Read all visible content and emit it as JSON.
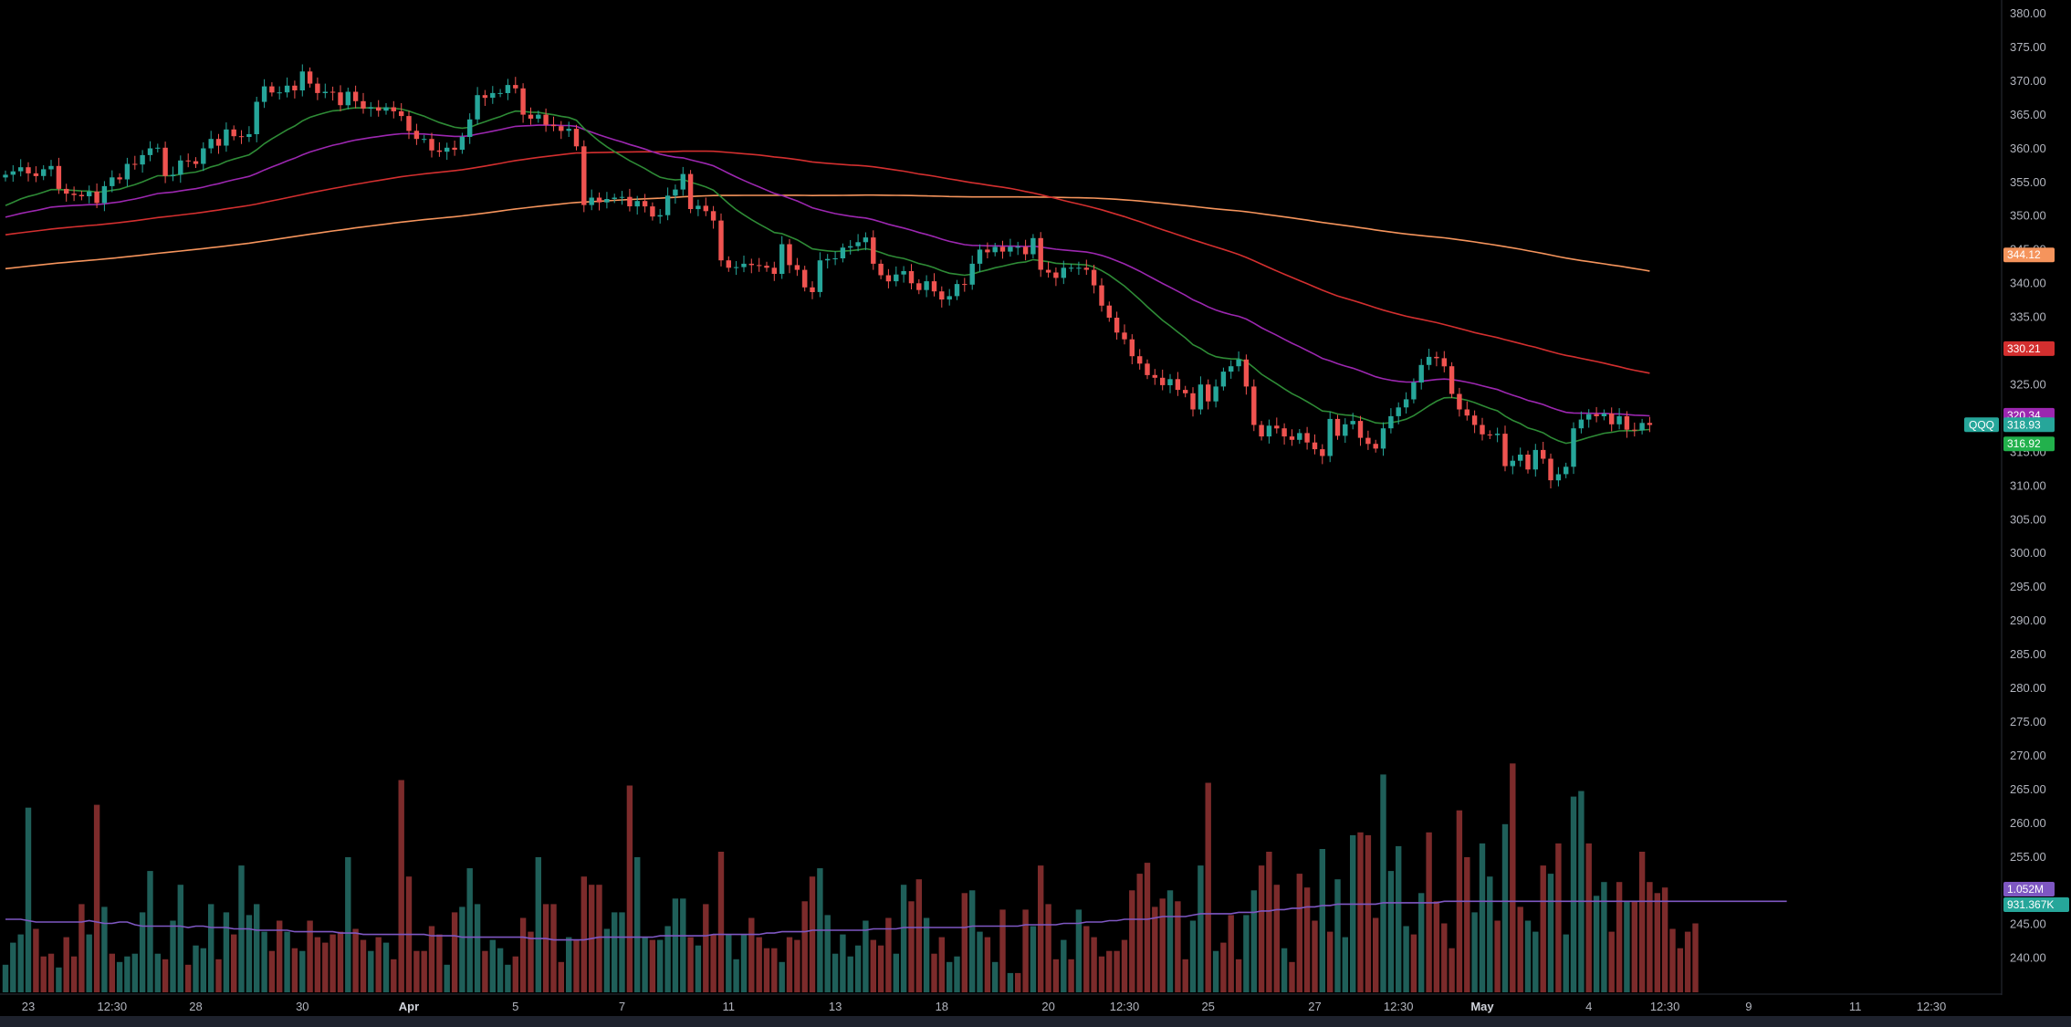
{
  "chart_data": {
    "type": "candlestick",
    "symbol": "QQQ",
    "y_ticks": [
      "380.00",
      "375.00",
      "370.00",
      "365.00",
      "360.00",
      "355.00",
      "350.00",
      "345.00",
      "340.00",
      "335.00",
      "330.00",
      "325.00",
      "320.00",
      "315.00",
      "310.00",
      "305.00",
      "300.00",
      "295.00",
      "290.00",
      "285.00",
      "280.00",
      "275.00",
      "270.00",
      "265.00",
      "260.00",
      "255.00",
      "250.00",
      "245.00",
      "240.00"
    ],
    "ylim": [
      237.5,
      380.5
    ],
    "x_ticks": [
      {
        "label": "23",
        "bar": 3,
        "bold": false
      },
      {
        "label": "12:30",
        "bar": 14,
        "bold": false
      },
      {
        "label": "28",
        "bar": 25,
        "bold": false
      },
      {
        "label": "30",
        "bar": 39,
        "bold": false
      },
      {
        "label": "Apr",
        "bar": 53,
        "bold": true
      },
      {
        "label": "5",
        "bar": 67,
        "bold": false
      },
      {
        "label": "7",
        "bar": 81,
        "bold": false
      },
      {
        "label": "11",
        "bar": 95,
        "bold": false
      },
      {
        "label": "13",
        "bar": 109,
        "bold": false
      },
      {
        "label": "18",
        "bar": 123,
        "bold": false
      },
      {
        "label": "20",
        "bar": 137,
        "bold": false
      },
      {
        "label": "12:30",
        "bar": 147,
        "bold": false
      },
      {
        "label": "25",
        "bar": 158,
        "bold": false
      },
      {
        "label": "27",
        "bar": 172,
        "bold": false
      },
      {
        "label": "12:30",
        "bar": 183,
        "bold": false
      },
      {
        "label": "May",
        "bar": 194,
        "bold": true
      },
      {
        "label": "4",
        "bar": 208,
        "bold": false
      },
      {
        "label": "12:30",
        "bar": 218,
        "bold": false
      },
      {
        "label": "9",
        "bar": 229,
        "bold": false
      },
      {
        "label": "11",
        "bar": 243,
        "bold": false
      },
      {
        "label": "12:30",
        "bar": 253,
        "bold": false
      }
    ],
    "closes": [
      356.0,
      356.5,
      357.1,
      356.2,
      355.8,
      356.8,
      357.3,
      353.9,
      353.2,
      353.0,
      352.8,
      353.5,
      351.8,
      354.3,
      355.6,
      355.3,
      357.6,
      357.5,
      358.9,
      359.9,
      360.0,
      355.8,
      356.0,
      358.1,
      358.0,
      357.6,
      359.9,
      361.3,
      360.3,
      362.7,
      361.7,
      361.6,
      362.0,
      366.8,
      369.1,
      368.2,
      368.2,
      369.2,
      368.5,
      371.3,
      369.5,
      368.1,
      368.3,
      368.2,
      366.3,
      368.3,
      366.9,
      365.8,
      366.0,
      365.5,
      366.0,
      365.4,
      364.7,
      362.5,
      361.3,
      361.3,
      359.6,
      359.4,
      360.0,
      359.7,
      361.6,
      364.2,
      367.8,
      367.4,
      368.1,
      368.1,
      369.3,
      368.8,
      364.9,
      364.3,
      364.9,
      363.4,
      363.2,
      362.5,
      362.8,
      360.2,
      351.5,
      352.6,
      351.9,
      352.4,
      352.6,
      352.7,
      351.3,
      352.1,
      351.3,
      349.8,
      350.0,
      352.9,
      353.8,
      356.1,
      350.9,
      351.4,
      350.6,
      349.2,
      343.3,
      342.2,
      342.3,
      342.8,
      342.6,
      342.5,
      342.2,
      341.3,
      345.7,
      342.6,
      341.9,
      339.3,
      338.6,
      343.3,
      343.5,
      343.6,
      345.2,
      345.4,
      346.0,
      346.7,
      342.8,
      341.1,
      340.2,
      341.2,
      341.7,
      339.9,
      338.9,
      340.2,
      338.7,
      337.5,
      338.0,
      339.8,
      339.7,
      342.8,
      344.9,
      344.5,
      345.3,
      344.6,
      345.3,
      345.3,
      344.2,
      346.6,
      341.9,
      341.5,
      340.7,
      342.2,
      342.2,
      342.2,
      341.9,
      339.6,
      336.6,
      334.8,
      332.6,
      331.6,
      329.1,
      328.0,
      326.3,
      325.9,
      324.8,
      325.7,
      324.1,
      323.6,
      321.2,
      324.9,
      322.4,
      324.6,
      326.8,
      327.6,
      328.6,
      324.6,
      318.9,
      317.2,
      318.8,
      318.4,
      317.2,
      316.7,
      317.7,
      316.3,
      315.3,
      314.3,
      319.8,
      317.3,
      319.0,
      319.5,
      317.0,
      316.1,
      315.4,
      318.4,
      320.2,
      321.5,
      322.7,
      325.2,
      327.8,
      329.0,
      328.8,
      327.6,
      323.5,
      321.2,
      320.3,
      318.9,
      317.5,
      317.4,
      317.6,
      312.8,
      313.6,
      314.5,
      312.3,
      315.2,
      313.9,
      310.7,
      311.6,
      312.7,
      318.4,
      319.7,
      320.5,
      320.2,
      320.6,
      319.0,
      320.2,
      318.2,
      318.1,
      319.2,
      318.9
    ],
    "volume_series": {
      "volume_max": 100,
      "volumes": [
        10,
        18,
        21,
        67,
        23,
        13,
        14,
        9,
        20,
        13,
        32,
        21,
        68,
        31,
        14,
        11,
        13,
        14,
        29,
        44,
        14,
        12,
        26,
        39,
        10,
        17,
        16,
        32,
        12,
        29,
        21,
        46,
        28,
        32,
        22,
        15,
        26,
        22,
        16,
        15,
        26,
        20,
        18,
        21,
        22,
        49,
        23,
        19,
        15,
        20,
        18,
        12,
        77,
        42,
        15,
        15,
        24,
        21,
        10,
        29,
        31,
        45,
        32,
        15,
        19,
        16,
        10,
        13,
        27,
        22,
        49,
        32,
        32,
        11,
        20,
        19,
        42,
        39,
        39,
        23,
        29,
        29,
        75,
        49,
        20,
        19,
        19,
        24,
        34,
        34,
        20,
        17,
        32,
        21,
        51,
        21,
        12,
        21,
        27,
        20,
        16,
        16,
        11,
        20,
        19,
        33,
        42,
        45,
        28,
        14,
        21,
        13,
        17,
        26,
        19,
        17,
        27,
        14,
        39,
        33,
        41,
        27,
        14,
        20,
        11,
        13,
        36,
        37,
        22,
        20,
        11,
        30,
        7,
        7,
        30,
        24,
        46,
        32,
        12,
        19,
        12,
        30,
        24,
        20,
        13,
        15,
        15,
        19,
        37,
        43,
        47,
        31,
        34,
        37,
        33,
        12,
        26,
        46,
        76,
        15,
        18,
        28,
        12,
        28,
        37,
        46,
        51,
        39,
        16,
        11,
        43,
        38,
        26,
        52,
        22,
        41,
        20,
        57,
        58,
        57,
        27,
        79,
        44,
        53,
        24,
        21,
        36,
        58,
        33,
        25,
        16,
        66,
        49,
        29,
        54,
        42,
        26,
        61,
        83,
        31,
        26,
        22,
        46,
        43,
        54,
        21,
        71,
        73,
        54,
        35,
        40,
        22,
        40,
        33,
        33,
        51,
        40,
        36,
        38,
        23,
        16,
        22,
        25
      ],
      "volume_colors": [
        "up",
        "up",
        "up",
        "up",
        "down",
        "down",
        "down",
        "up",
        "down",
        "down",
        "down",
        "up",
        "down",
        "up",
        "down",
        "up",
        "up",
        "up",
        "up",
        "up",
        "up",
        "down",
        "up",
        "up",
        "down",
        "up",
        "up",
        "up",
        "down",
        "up",
        "down",
        "up",
        "up",
        "up",
        "up",
        "down",
        "down",
        "up",
        "down",
        "up",
        "down",
        "down",
        "down",
        "down",
        "down",
        "up",
        "down",
        "down",
        "up",
        "down",
        "up",
        "down",
        "down",
        "down",
        "down",
        "down",
        "down",
        "down",
        "up",
        "down",
        "up",
        "up",
        "up",
        "down",
        "up",
        "up",
        "up",
        "down",
        "down",
        "down",
        "up",
        "down",
        "down",
        "down",
        "up",
        "down",
        "down",
        "down",
        "down",
        "up",
        "up",
        "up",
        "down",
        "up",
        "up",
        "down",
        "up",
        "up",
        "up",
        "up",
        "down",
        "up",
        "down",
        "down",
        "down",
        "up",
        "up",
        "up",
        "down",
        "down",
        "down",
        "down",
        "up",
        "down",
        "down",
        "down",
        "down",
        "up",
        "up",
        "up",
        "up",
        "up",
        "up",
        "up",
        "down",
        "down",
        "down",
        "up",
        "up",
        "down",
        "down",
        "up",
        "down",
        "down",
        "up",
        "up",
        "down",
        "up",
        "up",
        "down",
        "up",
        "down",
        "up",
        "down",
        "down",
        "up",
        "down",
        "down",
        "down",
        "up",
        "down",
        "up",
        "down",
        "down",
        "down",
        "down",
        "down",
        "down",
        "down",
        "down",
        "down",
        "down",
        "down",
        "up",
        "down",
        "down",
        "up",
        "up",
        "down",
        "up",
        "down",
        "down",
        "down",
        "up",
        "up",
        "down",
        "down",
        "down",
        "up",
        "down",
        "down",
        "down",
        "down",
        "up",
        "down",
        "up",
        "up",
        "up",
        "down",
        "down",
        "down",
        "up",
        "up",
        "up",
        "up",
        "down",
        "up",
        "down",
        "down",
        "down",
        "down",
        "down",
        "down",
        "up",
        "up",
        "up",
        "down",
        "up",
        "down",
        "down",
        "up",
        "up",
        "down",
        "up",
        "down",
        "up",
        "up",
        "up",
        "down",
        "up",
        "up",
        "down",
        "down",
        "up"
      ],
      "volume_ma": [
        53,
        53,
        53,
        52,
        51,
        51,
        51,
        51,
        51,
        51,
        51,
        52,
        51,
        50,
        50,
        51,
        51,
        49,
        48,
        48,
        48,
        48,
        48,
        48,
        47,
        48,
        48,
        47,
        47,
        47,
        46,
        46,
        46,
        45,
        45,
        45,
        45,
        45,
        44,
        44,
        44,
        44,
        44,
        44,
        43,
        43,
        43,
        42,
        42,
        42,
        42,
        42,
        42,
        42,
        42,
        42,
        41,
        41,
        41,
        41,
        40,
        40,
        40,
        40,
        40,
        40,
        40,
        40,
        40,
        39,
        39,
        39,
        38,
        38,
        38,
        38,
        38,
        39,
        40,
        40,
        40,
        40,
        40,
        40,
        40,
        40,
        41,
        41,
        41,
        41,
        41,
        41,
        41,
        42,
        42,
        42,
        42,
        42,
        42,
        42,
        43,
        43,
        44,
        44,
        44,
        44,
        45,
        45,
        45,
        45,
        45,
        45,
        45,
        45,
        46,
        46,
        46,
        46,
        47,
        47,
        47,
        47,
        47,
        47,
        47,
        47,
        47,
        48,
        48,
        48,
        48,
        48,
        48,
        48,
        49,
        49,
        49,
        49,
        49,
        50,
        50,
        50,
        51,
        51,
        51,
        52,
        52,
        53,
        53,
        53,
        53,
        54,
        55,
        55,
        55,
        55,
        56,
        57,
        57,
        57,
        57,
        57,
        58,
        58,
        58,
        59,
        59,
        60,
        60,
        61,
        61,
        62,
        62,
        63,
        63,
        64,
        64,
        64,
        64,
        64,
        64,
        65,
        65,
        65,
        65,
        65,
        65,
        65,
        65,
        66,
        66,
        66,
        66,
        66,
        66,
        66,
        66,
        66,
        66,
        66,
        66,
        66,
        66,
        66,
        66,
        66,
        66,
        66,
        66,
        66,
        66,
        66,
        66,
        66,
        66,
        66,
        66,
        66,
        66,
        66,
        66,
        66,
        66,
        66,
        66,
        66,
        66,
        66,
        66,
        66,
        66,
        66,
        66,
        66,
        66
      ]
    },
    "last_values": {
      "ma_orange": "344.12",
      "ma_red": "330.21",
      "ma_purple": "320.34",
      "price": "318.93",
      "ma_green": "316.92",
      "volume_ma": "1.052M",
      "volume": "931.367K"
    },
    "colors": {
      "up": "#26a69a",
      "down": "#ef5350",
      "vol_up": "#1f5f59",
      "vol_down": "#7c2b2b",
      "ma_green": "#2e8b36",
      "ma_purple": "#9c27b0",
      "ma_red": "#d32f2f",
      "ma_orange": "#f5945c",
      "volume_ma": "#7e57c2",
      "axis_text": "#b2b5be"
    }
  }
}
